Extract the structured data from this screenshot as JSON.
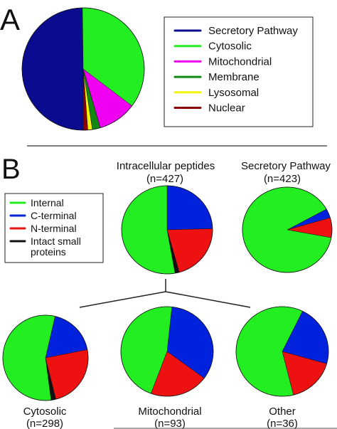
{
  "panel_labels": {
    "a": "A",
    "b": "B"
  },
  "chart_data": [
    {
      "type": "pie",
      "categories": [
        "Secretory Pathway",
        "Cytosolic",
        "Mitochondrial",
        "Membrane",
        "Lysosomal",
        "Nuclear"
      ],
      "values": [
        49.8,
        35.5,
        10.2,
        2.1,
        1.2,
        1.2
      ],
      "colors": [
        "#0b0b8f",
        "#22ee22",
        "#f000f0",
        "#118811",
        "#f2f20a",
        "#8b0000"
      ],
      "legend": [
        "Secretory Pathway",
        "Cytosolic",
        "Mitochondrial",
        "Membrane",
        "Lysosomal",
        "Nuclear"
      ],
      "legend_position": "right"
    },
    {
      "type": "pie",
      "title": [
        "Intracellular peptides",
        "(n=427)"
      ],
      "categories": [
        "C-terminal",
        "N-terminal",
        "Intact small proteins",
        "Internal"
      ],
      "values": [
        24.6,
        21.1,
        1.5,
        52.8
      ],
      "colors": [
        "#0022dd",
        "#ee1111",
        "#111111",
        "#22ee22"
      ],
      "legend": [
        "Internal",
        "C-terminal",
        "N-terminal",
        "Intact small proteins"
      ],
      "legend_colors": [
        "#22ee22",
        "#0022dd",
        "#ee1111",
        "#111111"
      ],
      "legend_position": "left"
    },
    {
      "type": "pie",
      "title": [
        "Secretory Pathway",
        "(n=423)"
      ],
      "categories": [
        "C-terminal",
        "N-terminal",
        "Internal"
      ],
      "values": [
        3.5,
        7.5,
        89.0
      ],
      "colors": [
        "#0022dd",
        "#ee1111",
        "#22ee22"
      ]
    },
    {
      "type": "pie",
      "title": [
        "Cytosolic",
        "(n=298)"
      ],
      "categories": [
        "C-terminal",
        "N-terminal",
        "Intact small proteins",
        "Internal"
      ],
      "values": [
        18.3,
        24.2,
        1.8,
        55.7
      ],
      "colors": [
        "#0022dd",
        "#ee1111",
        "#111111",
        "#22ee22"
      ]
    },
    {
      "type": "pie",
      "title": [
        "Mitochondrial",
        "(n=93)"
      ],
      "categories": [
        "C-terminal",
        "N-terminal",
        "Internal"
      ],
      "values": [
        33.5,
        20.5,
        46.0
      ],
      "colors": [
        "#0022dd",
        "#ee1111",
        "#22ee22"
      ]
    },
    {
      "type": "pie",
      "title": [
        "Other",
        "(n=36)"
      ],
      "categories": [
        "C-terminal",
        "N-terminal",
        "Internal"
      ],
      "values": [
        22.2,
        16.7,
        61.1
      ],
      "colors": [
        "#0022dd",
        "#ee1111",
        "#22ee22"
      ]
    }
  ]
}
